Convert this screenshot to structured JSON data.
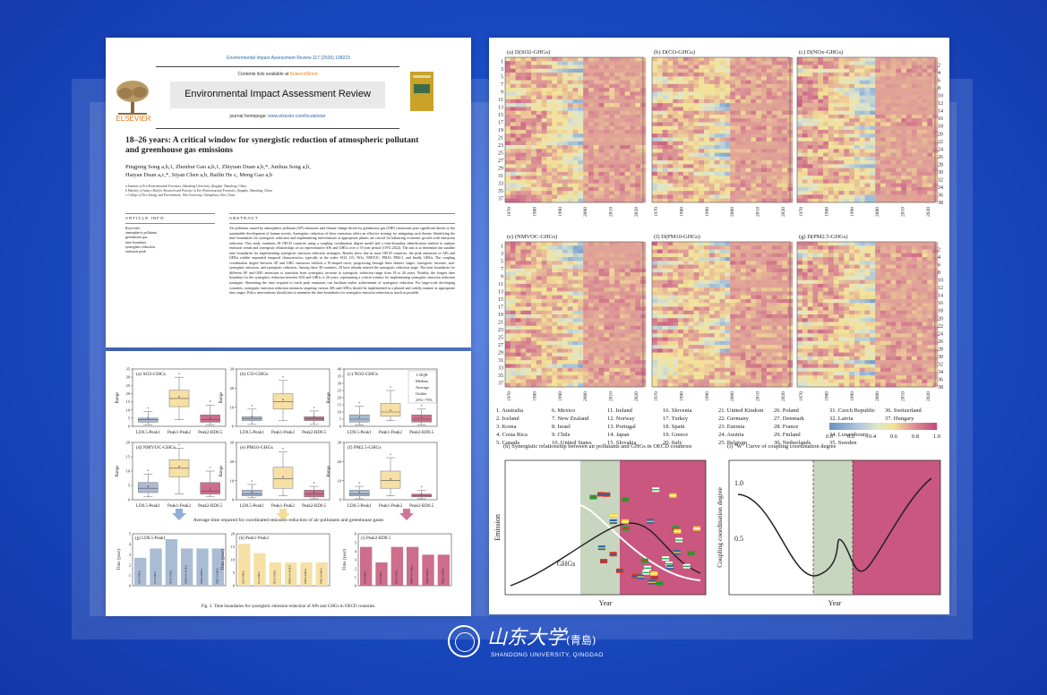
{
  "paper": {
    "journal_ref": "Environmental Impact Assessment Review 117 (2026) 108223",
    "contents_prefix": "Contents lists available at ",
    "contents_link": "ScienceDirect",
    "journal_name": "Environmental Impact Assessment Review",
    "homepage_prefix": "journal homepage: ",
    "homepage_link": "www.elsevier.com/locate/eiar",
    "publisher": "ELSEVIER",
    "title": "18–26 years: A critical window for synergistic reduction of atmospheric pollutant and greenhouse gas emissions",
    "authors_line1": "Pingping Song a,b,1, Zhenhui Gao a,b,1, Zhiyuan Duan a,b,*, Junhua Song a,b,",
    "authors_line2": "Haiyan Duan a,c,*, Siyan Chen a,b, Bailin He c, Meng Gao a,b",
    "affiliations": [
      "a Institute of Eco-Environmental Forensics, Shandong University, Qingdao, Shandong, China",
      "b Ministry of Justice Hub for Research and Practice in Eco-Environmental Forensics, Qingdao, Shandong, China",
      "c College of New Energy and Environment, Jilin University, Changchun, Jilin, China"
    ],
    "article_info_heading": "ARTICLE INFO",
    "abstract_heading": "ABSTRACT",
    "keywords_heading": "Keywords:",
    "keywords": [
      "atmospheric pollutant",
      "greenhouse gas",
      "time boundary",
      "synergistic reduction",
      "emission peak"
    ],
    "abstract": "Air pollution caused by atmospheric pollutant (AP) emissions and climate change driven by greenhouse gas (GHG) emissions pose significant threats to the sustainable development of human society. Synergistic reduction of these emissions offers an effective strategy for mitigating such threats. Identifying the time boundaries for synergistic reduction and implementing interventions at appropriate phases are crucial for balancing economic growth with emissions reduction. This study examines 38 OECD countries using a coupling coordination degree model and a time-boundary identification method to analyze emission trends and synergistic relationships of six representative APs and GHGs over a 53-year period (1970–2022). The aim is to determine the suitable time boundaries for implementing synergistic emission reduction strategies. Results show that in most OECD countries, the peak emissions of APs and GHGs exhibit sequential temporal characteristics, typically in the order: SO2, CO, NOx, NMVOC, PM10, PM2.5, and finally GHGs. The coupling coordination degree between AP and GHG emissions exhibits a W-shaped curve, progressing through three distinct stages: synergistic increase, non-synergistic emission, and synergistic reduction. Among these 38 countries, 29 have already entered the synergistic reduction stage. The time boundaries for different AP and GHG emissions to transition from synergistic increase to synergistic reduction range from 18 to 26 years. Notably, the longest time boundary for the synergistic reduction between SO2 and GHGs is 26 years, representing a critical window for implementing synergistic emission reduction strategies. Shortening the time required to reach peak emissions can facilitate earlier achievement of synergistic reduction. For large-scale developing countries, synergistic emission reduction measures targeting various APs and GHGs should be implemented in a phased and orderly manner at appropriate time stages. Policy interventions should aim to minimize the time boundaries for synergistic emission reduction as much as possible."
  },
  "fig3": {
    "panels": [
      {
        "label": "(a) SO2-GHGs",
        "ymax": 35,
        "ticks": [
          0,
          5,
          10,
          15,
          20,
          25,
          30,
          35
        ],
        "boxes": [
          [
            1,
            2.5,
            4,
            5,
            9
          ],
          [
            4,
            12,
            17,
            22,
            30
          ],
          [
            1,
            2.5,
            4,
            7,
            13
          ]
        ]
      },
      {
        "label": "(b) CO-GHGs",
        "ymax": 30,
        "ticks": [
          0,
          10,
          20,
          30
        ],
        "boxes": [
          [
            1,
            3,
            4,
            5,
            9
          ],
          [
            3,
            9,
            13,
            17,
            24
          ],
          [
            1,
            3,
            4,
            5,
            8
          ]
        ]
      },
      {
        "label": "(c) NO2-GHGs",
        "ymax": 40,
        "ticks": [
          0,
          5,
          10,
          15,
          20,
          25,
          30,
          35,
          40
        ],
        "boxes": [
          [
            1,
            3,
            5,
            8,
            14
          ],
          [
            4,
            7,
            10,
            16,
            25
          ],
          [
            1,
            3,
            5,
            8,
            12
          ]
        ]
      },
      {
        "label": "(d) NMVOC-GHGs",
        "ymax": 20,
        "ticks": [
          0,
          5,
          10,
          15,
          20
        ],
        "boxes": [
          [
            1,
            2.5,
            4,
            6,
            9
          ],
          [
            2,
            8,
            11,
            14,
            18
          ],
          [
            1,
            2,
            3,
            6,
            10
          ]
        ]
      },
      {
        "label": "(e) PM10-GHGs",
        "ymax": 30,
        "ticks": [
          0,
          10,
          20,
          30
        ],
        "boxes": [
          [
            1,
            2,
            3,
            5,
            8
          ],
          [
            2,
            6,
            11,
            17,
            25
          ],
          [
            0.5,
            1.5,
            3,
            5,
            7
          ]
        ]
      },
      {
        "label": "(f) PM2.5-GHGs",
        "ymax": 30,
        "ticks": [
          0,
          10,
          20,
          30
        ],
        "boxes": [
          [
            0.5,
            2,
            3,
            5,
            7
          ],
          [
            2,
            6,
            10,
            15,
            22
          ],
          [
            0.5,
            1.5,
            2,
            3,
            5
          ]
        ]
      }
    ],
    "categories": [
      "LD0.5-Peak1",
      "Peak1-Peak2",
      "Peak2-RD0.5"
    ],
    "legend": [
      "1.5IQR",
      "Median",
      "Average",
      "Outlier",
      "25%~75%"
    ],
    "mid_caption": "Average time required for coordinated emission reduction of air pollutants and greenhouse gases",
    "bar_panels": [
      {
        "label": "(g) LD0.5-Peak1",
        "ymax": 5,
        "ticks": [
          0,
          1,
          2,
          3,
          4,
          5
        ],
        "values": [
          3,
          4,
          5,
          4,
          4,
          4
        ]
      },
      {
        "label": "(h) Peak1-Peak2",
        "ymax": 20,
        "ticks": [
          0,
          5,
          10,
          15,
          20
        ],
        "values": [
          18,
          14,
          10,
          10,
          10,
          10
        ]
      },
      {
        "label": "(i) Peak2-RD0.5",
        "ymax": 6,
        "ticks": [
          0,
          1,
          2,
          3,
          4,
          5,
          6
        ],
        "values": [
          5,
          3,
          5,
          5,
          4,
          4
        ]
      }
    ],
    "bar_labels": [
      "SO2-GHGs",
      "CO-GHGs",
      "NO2-GHGs",
      "NMVOC-GHGs",
      "PM10-GHGs",
      "PM2.5-GHGs"
    ],
    "ylabel": "Range",
    "bar_ylabel": "Time (year)",
    "caption": "Fig. 3. Time boundaries for synergistic emission reduction of APs and GHGs in OECD countries.",
    "colors": {
      "blue": "#a9bcd4",
      "yellow": "#f7e0a5",
      "pink": "#cc6e8c",
      "arrow_blue": "#8fb0d8",
      "arrow_yellow": "#f5dc9a",
      "arrow_pink": "#d2749a"
    }
  },
  "fig4": {
    "heatmaps": [
      {
        "label": "(a) D(SO2-GHGs)",
        "seed": 3
      },
      {
        "label": "(b) D(CO-GHGs)",
        "seed": 7
      },
      {
        "label": "(c) D(NOx-GHGs)",
        "seed": 11
      },
      {
        "label": "(e) (NMVOC-GHGs)",
        "seed": 13
      },
      {
        "label": "(f) D(PM10-GHGs)",
        "seed": 17
      },
      {
        "label": "(g) D(PM2.5-GHGs)",
        "seed": 19
      }
    ],
    "years": [
      "1970",
      "1980",
      "1990",
      "2000",
      "2010",
      "2020"
    ],
    "left_rows": [
      "1",
      "3",
      "5",
      "7",
      "9",
      "11",
      "13",
      "15",
      "17",
      "19",
      "21",
      "23",
      "25",
      "27",
      "29",
      "31",
      "33",
      "35",
      "37"
    ],
    "right_rows": [
      "2",
      "4",
      "6",
      "8",
      "10",
      "12",
      "14",
      "16",
      "18",
      "20",
      "22",
      "24",
      "26",
      "28",
      "30",
      "32",
      "34",
      "36",
      "38"
    ],
    "countries": [
      "1. Australia",
      "2. Iceland",
      "3. Korea",
      "4. Costa Rica",
      "5. Canada",
      "6. Mexico",
      "7. New Zealand",
      "8. Israel",
      "9. Chile",
      "10. United States",
      "11. Ireland",
      "12. Norway",
      "13. Portugal",
      "14. Japan",
      "15. Slovakia",
      "16. Slovenia",
      "17. Turkey",
      "18. Spain",
      "19. Greece",
      "20. Italy",
      "21. United Kindom",
      "22. Germany",
      "23. Estonia",
      "24. Austria",
      "25. Belgium",
      "26. Poland",
      "27. Denmark",
      "28. France",
      "29. Finland",
      "30. Netherlands",
      "31. Czech Republic",
      "32. Latvia",
      "33. Lithuania",
      "34. Luxembourg",
      "35. Sweden",
      "36. Switzerland",
      "37. Hungary",
      "38. Colombia"
    ],
    "colorbar_ticks": [
      "0.0",
      "0.2",
      "0.4",
      "0.6",
      "0.8",
      "1.0"
    ],
    "panel_h_title": "(h) Synergistic relationship between air pollutants and GHGs in OECD countries",
    "panel_h_ap": "Atmospheric pollutants",
    "panel_h_ghg": "GHGs",
    "panel_h_ylabel": "Emission",
    "panel_h_xlabel": "Year",
    "panel_i_title": "(i) \"W\" Curve of coupling coordination degree",
    "panel_i_ylabel": "Coupling coordination degree",
    "panel_i_xlabel": "Year",
    "panel_i_ticks": [
      "1.0",
      "0.5"
    ]
  },
  "logo": {
    "chinese": "山东大学",
    "chinese_campus": "(青島)",
    "english": "SHANDONG UNIVERSITY, QINGDAO"
  }
}
